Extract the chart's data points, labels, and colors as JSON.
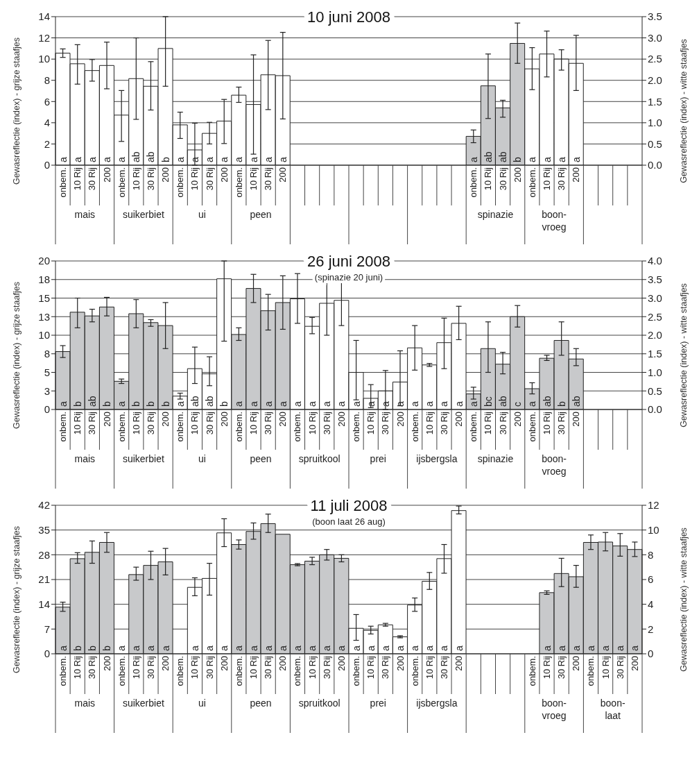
{
  "chart_data": [
    {
      "type": "bar",
      "title": "10 juni 2008",
      "ylabel": "Gewasreflectie (index) - grijze staafjes",
      "y2label": "Gewasreflectie (index) - witte staafjes",
      "categories": [
        "onbem.",
        "10 Rij",
        "30 Rij",
        "200",
        "onbem.",
        "10 Rij",
        "30 Rij",
        "200",
        "onbem.",
        "10 Rij",
        "30 Rij",
        "200",
        "onbem.",
        "10 Rij",
        "30 Rij",
        "200",
        null,
        null,
        null,
        null,
        null,
        null,
        null,
        null,
        null,
        null,
        null,
        null,
        "onbem.",
        "10 Rij",
        "30 Rij",
        "200",
        "onbem.",
        "10 Rij",
        "30 Rij",
        "200",
        null,
        null,
        null,
        null
      ],
      "annotations": [
        "mais",
        "suikerbiet",
        "ui",
        "peen",
        "spinazie",
        "boon-vroeg"
      ],
      "ylim": [
        0,
        14
      ],
      "yticks": [
        0,
        2,
        4,
        6,
        8,
        10,
        12,
        14
      ],
      "y2lim": [
        0,
        3.5
      ],
      "y2ticks": [
        {
          "value": 0,
          "label": "0.0"
        },
        0.5,
        {
          "value": 1,
          "label": "1.0"
        },
        1.5,
        {
          "value": 2,
          "label": "2.0"
        },
        2.5,
        {
          "value": 3,
          "label": "3.0"
        },
        3.5
      ],
      "grid": "y",
      "series": [
        {
          "color": "#c8c9cb",
          "values": [
            null,
            null,
            null,
            null,
            null,
            null,
            null,
            null,
            null,
            null,
            null,
            null,
            null,
            null,
            null,
            null,
            null,
            null,
            null,
            null,
            null,
            null,
            null,
            null,
            null,
            null,
            null,
            null,
            2.72,
            7.48,
            5.4,
            11.48,
            null,
            null,
            null,
            null,
            null,
            null,
            null,
            null
          ],
          "errors": [
            null,
            null,
            null,
            null,
            null,
            null,
            null,
            null,
            null,
            null,
            null,
            null,
            null,
            null,
            null,
            null,
            null,
            null,
            null,
            null,
            null,
            null,
            null,
            null,
            null,
            null,
            null,
            null,
            [
              2.12,
              3.32
            ],
            [
              4.4,
              10.48
            ],
            [
              4.52,
              6.12
            ],
            [
              9.6,
              13.4
            ],
            null,
            null,
            null,
            null,
            null,
            null,
            null,
            null
          ],
          "value_labels": [
            null,
            null,
            null,
            null,
            null,
            null,
            null,
            null,
            null,
            null,
            null,
            null,
            null,
            null,
            null,
            null,
            null,
            null,
            null,
            null,
            null,
            null,
            null,
            null,
            null,
            null,
            null,
            null,
            "a",
            "ab",
            "ab",
            "b",
            null,
            null,
            null,
            null,
            null,
            null,
            null,
            null
          ]
        },
        {
          "color": "#ffffff",
          "axis": "y2",
          "values": [
            2.64,
            2.39,
            2.23,
            2.35,
            1.18,
            2.04,
            1.86,
            2.75,
            0.95,
            0.36,
            0.75,
            1.04,
            1.65,
            1.43,
            2.13,
            2.11,
            null,
            null,
            null,
            null,
            null,
            null,
            null,
            null,
            null,
            null,
            null,
            null,
            null,
            null,
            null,
            null,
            2.27,
            2.62,
            2.5,
            2.4,
            null,
            null,
            null,
            null
          ],
          "errors": [
            [
              2.54,
              2.74
            ],
            [
              1.91,
              2.84
            ],
            [
              1.98,
              2.49
            ],
            [
              1.8,
              2.9
            ],
            [
              0.56,
              1.76
            ],
            [
              1.08,
              3.0
            ],
            [
              1.3,
              2.44
            ],
            [
              1.86,
              3.5
            ],
            [
              0.63,
              1.25
            ],
            [
              0,
              0.99
            ],
            [
              0.5,
              1.01
            ],
            [
              0.51,
              1.55
            ],
            [
              1.48,
              1.84
            ],
            [
              0.26,
              2.6
            ],
            [
              1.31,
              2.94
            ],
            [
              1.09,
              3.13
            ],
            null,
            null,
            null,
            null,
            null,
            null,
            null,
            null,
            null,
            null,
            null,
            null,
            null,
            null,
            null,
            null,
            [
              1.78,
              2.77
            ],
            [
              2.08,
              3.16
            ],
            [
              2.24,
              2.72
            ],
            [
              1.76,
              3.06
            ],
            null,
            null,
            null,
            null
          ],
          "value_labels": [
            "a",
            "a",
            "a",
            "a",
            "a",
            "ab",
            "ab",
            "b",
            "a",
            "a",
            "a",
            "a",
            "a",
            "a",
            "a",
            "a",
            null,
            null,
            null,
            null,
            null,
            null,
            null,
            null,
            null,
            null,
            null,
            null,
            null,
            null,
            null,
            null,
            "a",
            "a",
            "a",
            "a",
            null,
            null,
            null,
            null
          ]
        }
      ]
    },
    {
      "type": "bar",
      "title": "26 juni 2008",
      "subtitle": "(spinazie 20 juni)",
      "ylabel": "Gewasreflectie (index) - grijze staafjes",
      "y2label": "Gewasreflectie (index) - witte staafjes",
      "categories": [
        "onbem.",
        "10 Rij",
        "30 Rij",
        "200",
        "onbem.",
        "10 Rij",
        "30 Rij",
        "200",
        "onbem.",
        "10 Rij",
        "30 Rij",
        "200",
        "onbem.",
        "10 Rij",
        "30 Rij",
        "200",
        "onbem.",
        "10 Rij",
        "30 Rij",
        "200",
        "onbem.",
        "10 Rij",
        "30 Rij",
        "200",
        "onbem.",
        "10 Rij",
        "30 Rij",
        "200",
        "onbem.",
        "10 Rij",
        "30 Rij",
        "200",
        "onbem.",
        "10 Rij",
        "30 Rij",
        "200",
        null,
        null,
        null,
        null
      ],
      "annotations": [
        "mais",
        "suikerbiet",
        "ui",
        "peen",
        "spruitkool",
        "prei",
        "ijsbergsla",
        "spinazie",
        "boon-vroeg"
      ],
      "ylim": [
        0,
        20
      ],
      "yticks": [
        0,
        {
          "value": 2.5,
          "label": "3"
        },
        5,
        {
          "value": 7.5,
          "label": "8"
        },
        10,
        {
          "value": 12.5,
          "label": "13"
        },
        15,
        {
          "value": 17.5,
          "label": "18"
        },
        20
      ],
      "y2lim": [
        0,
        4
      ],
      "y2ticks": [
        {
          "value": 0,
          "label": "0.0"
        },
        0.5,
        {
          "value": 1,
          "label": "1.0"
        },
        1.5,
        {
          "value": 2,
          "label": "2.0"
        },
        2.5,
        {
          "value": 3,
          "label": "3.0"
        },
        3.5,
        {
          "value": 4,
          "label": "4.0"
        }
      ],
      "grid": "y",
      "series": [
        {
          "color": "#c8c9cb",
          "values": [
            7.8,
            13.1,
            12.6,
            13.8,
            3.8,
            12.9,
            11.7,
            11.3,
            null,
            null,
            null,
            null,
            10.1,
            16.3,
            13.3,
            14.4,
            null,
            null,
            null,
            null,
            null,
            null,
            null,
            null,
            null,
            null,
            null,
            null,
            2.1,
            8.2,
            6.1,
            12.5,
            2.8,
            6.9,
            9.3,
            6.8,
            null,
            null,
            null,
            null
          ],
          "errors": [
            [
              7.0,
              8.6
            ],
            [
              11.0,
              15.0
            ],
            [
              11.8,
              13.5
            ],
            [
              12.6,
              15.1
            ],
            [
              3.5,
              4.1
            ],
            [
              11.0,
              14.8
            ],
            [
              11.2,
              12.1
            ],
            [
              8.2,
              14.4
            ],
            null,
            null,
            null,
            null,
            [
              9.3,
              11.0
            ],
            [
              14.4,
              18.2
            ],
            [
              10.7,
              15.5
            ],
            [
              10.8,
              18.0
            ],
            null,
            null,
            null,
            null,
            null,
            null,
            null,
            null,
            null,
            null,
            null,
            null,
            [
              1.4,
              3.0
            ],
            [
              5.0,
              11.8
            ],
            [
              4.8,
              7.7
            ],
            [
              11.1,
              14.0
            ],
            [
              2.1,
              3.6
            ],
            [
              6.6,
              7.3
            ],
            [
              7.3,
              11.8
            ],
            [
              5.9,
              8.2
            ],
            null,
            null,
            null,
            null
          ],
          "value_labels": [
            "a",
            "b",
            "ab",
            "b",
            "a",
            "b",
            "b",
            "b",
            null,
            null,
            null,
            null,
            "a",
            "a",
            "a",
            "a",
            null,
            null,
            null,
            null,
            null,
            null,
            null,
            null,
            null,
            null,
            null,
            null,
            "a",
            "bc",
            "ab",
            "c",
            "a",
            "ab",
            "b",
            "ab",
            null,
            null,
            null,
            null
          ]
        },
        {
          "color": "#ffffff",
          "axis": "y2",
          "values": [
            null,
            null,
            null,
            null,
            null,
            null,
            null,
            null,
            0.36,
            1.1,
            0.96,
            3.52,
            null,
            null,
            null,
            null,
            2.98,
            2.24,
            2.86,
            2.94,
            1.0,
            0.3,
            0.5,
            0.74,
            1.66,
            1.2,
            1.8,
            2.32,
            null,
            null,
            null,
            null,
            null,
            null,
            null,
            null,
            null,
            null,
            null,
            null
          ],
          "errors": [
            null,
            null,
            null,
            null,
            null,
            null,
            null,
            null,
            [
              0.28,
              0.44
            ],
            [
              0.7,
              1.68
            ],
            [
              0.64,
              1.42
            ],
            [
              1.84,
              4.0
            ],
            null,
            null,
            null,
            null,
            [
              2.32,
              3.66
            ],
            [
              2.04,
              2.48
            ],
            [
              2.0,
              3.74
            ],
            [
              2.26,
              3.62
            ],
            [
              0.26,
              1.86
            ],
            [
              0.05,
              0.67
            ],
            [
              0,
              1.05
            ],
            [
              0.1,
              1.58
            ],
            [
              1.06,
              2.26
            ],
            [
              1.16,
              1.24
            ],
            [
              1.1,
              2.46
            ],
            [
              1.88,
              2.78
            ],
            null,
            null,
            null,
            null,
            null,
            null,
            null,
            null,
            null,
            null,
            null,
            null
          ],
          "value_labels": [
            null,
            null,
            null,
            null,
            null,
            null,
            null,
            null,
            "a",
            "ab",
            "ab",
            "b",
            null,
            null,
            null,
            null,
            "a",
            "a",
            "a",
            "a",
            "a",
            "a",
            "a",
            "a",
            "a",
            "a",
            "a",
            "a",
            null,
            null,
            null,
            null,
            null,
            null,
            null,
            null,
            null,
            null,
            null,
            null
          ]
        }
      ]
    },
    {
      "type": "bar",
      "title": "11 juli 2008",
      "subtitle": "(boon laat 26 aug)",
      "ylabel": "Gewasreflectie (index) - grijze staafjes",
      "y2label": "Gewasreflectie (index) - witte staafjes",
      "categories": [
        "onbem.",
        "10 Rij",
        "30 Rij",
        "200",
        "onbem.",
        "10 Rij",
        "30 Rij",
        "200",
        "onbem.",
        "10 Rij",
        "30 Rij",
        "200",
        "onbem.",
        "10 Rij",
        "30 Rij",
        "200",
        "onbem.",
        "10 Rij",
        "30 Rij",
        "200",
        "onbem.",
        "10 Rij",
        "30 Rij",
        "200",
        "onbem.",
        "10 Rij",
        "30 Rij",
        "200",
        null,
        null,
        null,
        null,
        "onbem.",
        "10 Rij",
        "30 Rij",
        "200",
        "onbem.",
        "10 Rij",
        "30 Rij",
        "200"
      ],
      "annotations": [
        "mais",
        "suikerbiet",
        "ui",
        "peen",
        "spruitkool",
        "prei",
        "ijsbergsla",
        "boon-vroeg",
        "boon-laat"
      ],
      "ylim": [
        0,
        42
      ],
      "yticks": [
        0,
        7,
        14,
        21,
        28,
        35,
        42
      ],
      "y2lim": [
        0,
        12
      ],
      "y2ticks": [
        0,
        2,
        4,
        6,
        8,
        10,
        12
      ],
      "grid": "y",
      "series": [
        {
          "color": "#c8c9cb",
          "values": [
            13.2,
            26.9,
            28.7,
            31.5,
            null,
            22.4,
            25.0,
            26.0,
            null,
            null,
            null,
            null,
            30.9,
            34.6,
            36.8,
            33.8,
            25.2,
            26.2,
            28.0,
            27.0,
            null,
            null,
            null,
            null,
            null,
            null,
            null,
            null,
            null,
            null,
            null,
            null,
            null,
            17.3,
            22.7,
            21.8,
            31.5,
            31.6,
            30.5,
            29.5
          ],
          "errors": [
            [
              12.0,
              14.6
            ],
            [
              25.6,
              28.6
            ],
            [
              25.6,
              31.9
            ],
            [
              28.7,
              34.3
            ],
            null,
            [
              20.8,
              24.5
            ],
            [
              21.0,
              29.0
            ],
            [
              22.3,
              29.8
            ],
            null,
            null,
            null,
            null,
            [
              29.6,
              32.2
            ],
            [
              32.4,
              37.0
            ],
            [
              34.3,
              39.5
            ],
            null,
            [
              24.9,
              25.5
            ],
            [
              25.2,
              27.3
            ],
            [
              26.5,
              29.5
            ],
            [
              26.0,
              28.0
            ],
            null,
            null,
            null,
            null,
            null,
            null,
            null,
            null,
            null,
            null,
            null,
            null,
            null,
            [
              16.8,
              17.8
            ],
            [
              19.0,
              27.0
            ],
            [
              18.8,
              25.0
            ],
            [
              29.5,
              33.6
            ],
            [
              29.1,
              34.3
            ],
            [
              27.6,
              34.0
            ],
            [
              27.5,
              31.6
            ]
          ],
          "value_labels": [
            "a",
            "b",
            "b",
            "b",
            "a",
            "a",
            "a",
            "a",
            null,
            null,
            null,
            null,
            "a",
            "a",
            "a",
            "a",
            "a",
            "a",
            "a",
            "a",
            null,
            null,
            null,
            null,
            null,
            null,
            null,
            null,
            null,
            null,
            null,
            null,
            null,
            "a",
            "a",
            "a",
            "a",
            "a",
            "a",
            "a"
          ]
        },
        {
          "color": "#ffffff",
          "axis": "y2",
          "values": [
            null,
            null,
            null,
            null,
            null,
            null,
            null,
            null,
            null,
            5.37,
            6.09,
            9.77,
            null,
            null,
            null,
            null,
            null,
            null,
            null,
            null,
            2.06,
            1.89,
            2.34,
            1.37,
            3.94,
            5.86,
            7.69,
            11.57,
            null,
            null,
            null,
            null,
            null,
            null,
            null,
            null,
            null,
            null,
            null,
            null
          ],
          "errors": [
            null,
            null,
            null,
            null,
            null,
            null,
            null,
            null,
            null,
            [
              4.69,
              6.14
            ],
            [
              4.74,
              7.31
            ],
            [
              8.66,
              10.91
            ],
            null,
            null,
            null,
            null,
            null,
            null,
            null,
            null,
            [
              1.09,
              3.17
            ],
            [
              1.6,
              2.23
            ],
            [
              2.23,
              2.46
            ],
            [
              1.29,
              1.46
            ],
            [
              3.43,
              4.51
            ],
            [
              5.2,
              6.57
            ],
            [
              6.51,
              8.83
            ],
            [
              11.3,
              11.94
            ],
            null,
            null,
            null,
            null,
            null,
            null,
            null,
            null,
            null,
            null,
            null,
            null
          ],
          "value_labels": [
            null,
            null,
            null,
            null,
            null,
            null,
            null,
            null,
            null,
            "a",
            "a",
            "a",
            null,
            null,
            null,
            null,
            null,
            null,
            null,
            null,
            "a",
            "a",
            "a",
            "a",
            "a",
            "a",
            "a",
            "a",
            null,
            null,
            null,
            null,
            null,
            null,
            null,
            null,
            null,
            null,
            null,
            null
          ]
        }
      ]
    }
  ]
}
